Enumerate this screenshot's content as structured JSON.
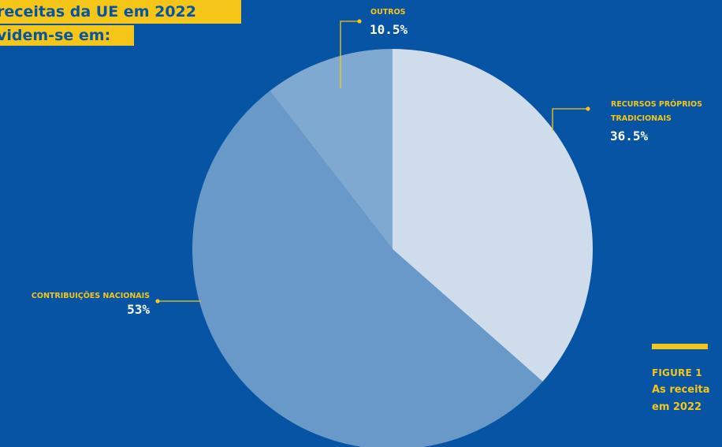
{
  "header": {
    "title_line1": "receitas da UE em 2022",
    "title_line2": "videm-se em:"
  },
  "figure": {
    "label": "FIGURE 1",
    "caption_line1": "As receita",
    "caption_line2": "em 2022"
  },
  "colors": {
    "background": "#0654a3",
    "accent": "#f5c518",
    "slice_light": "#cfdcec",
    "slice_mid": "#6999c8",
    "slice_other": "#80a9d2"
  },
  "chart_data": {
    "type": "pie",
    "title": "",
    "slices": [
      {
        "label_line1": "RECURSOS PRÓPRIOS",
        "label_line2": "TRADICIONAIS",
        "value": 36.5,
        "value_label": "36.5%",
        "color": "#cfdcec"
      },
      {
        "label_line1": "CONTRIBUIÇÕES NACIONAIS",
        "label_line2": "",
        "value": 53,
        "value_label": "53%",
        "color": "#6999c8"
      },
      {
        "label_line1": "OUTROS",
        "label_line2": "",
        "value": 10.5,
        "value_label": "10.5%",
        "color": "#80a9d2"
      }
    ],
    "start_angle": "top",
    "direction": "clockwise",
    "legend": "none"
  }
}
